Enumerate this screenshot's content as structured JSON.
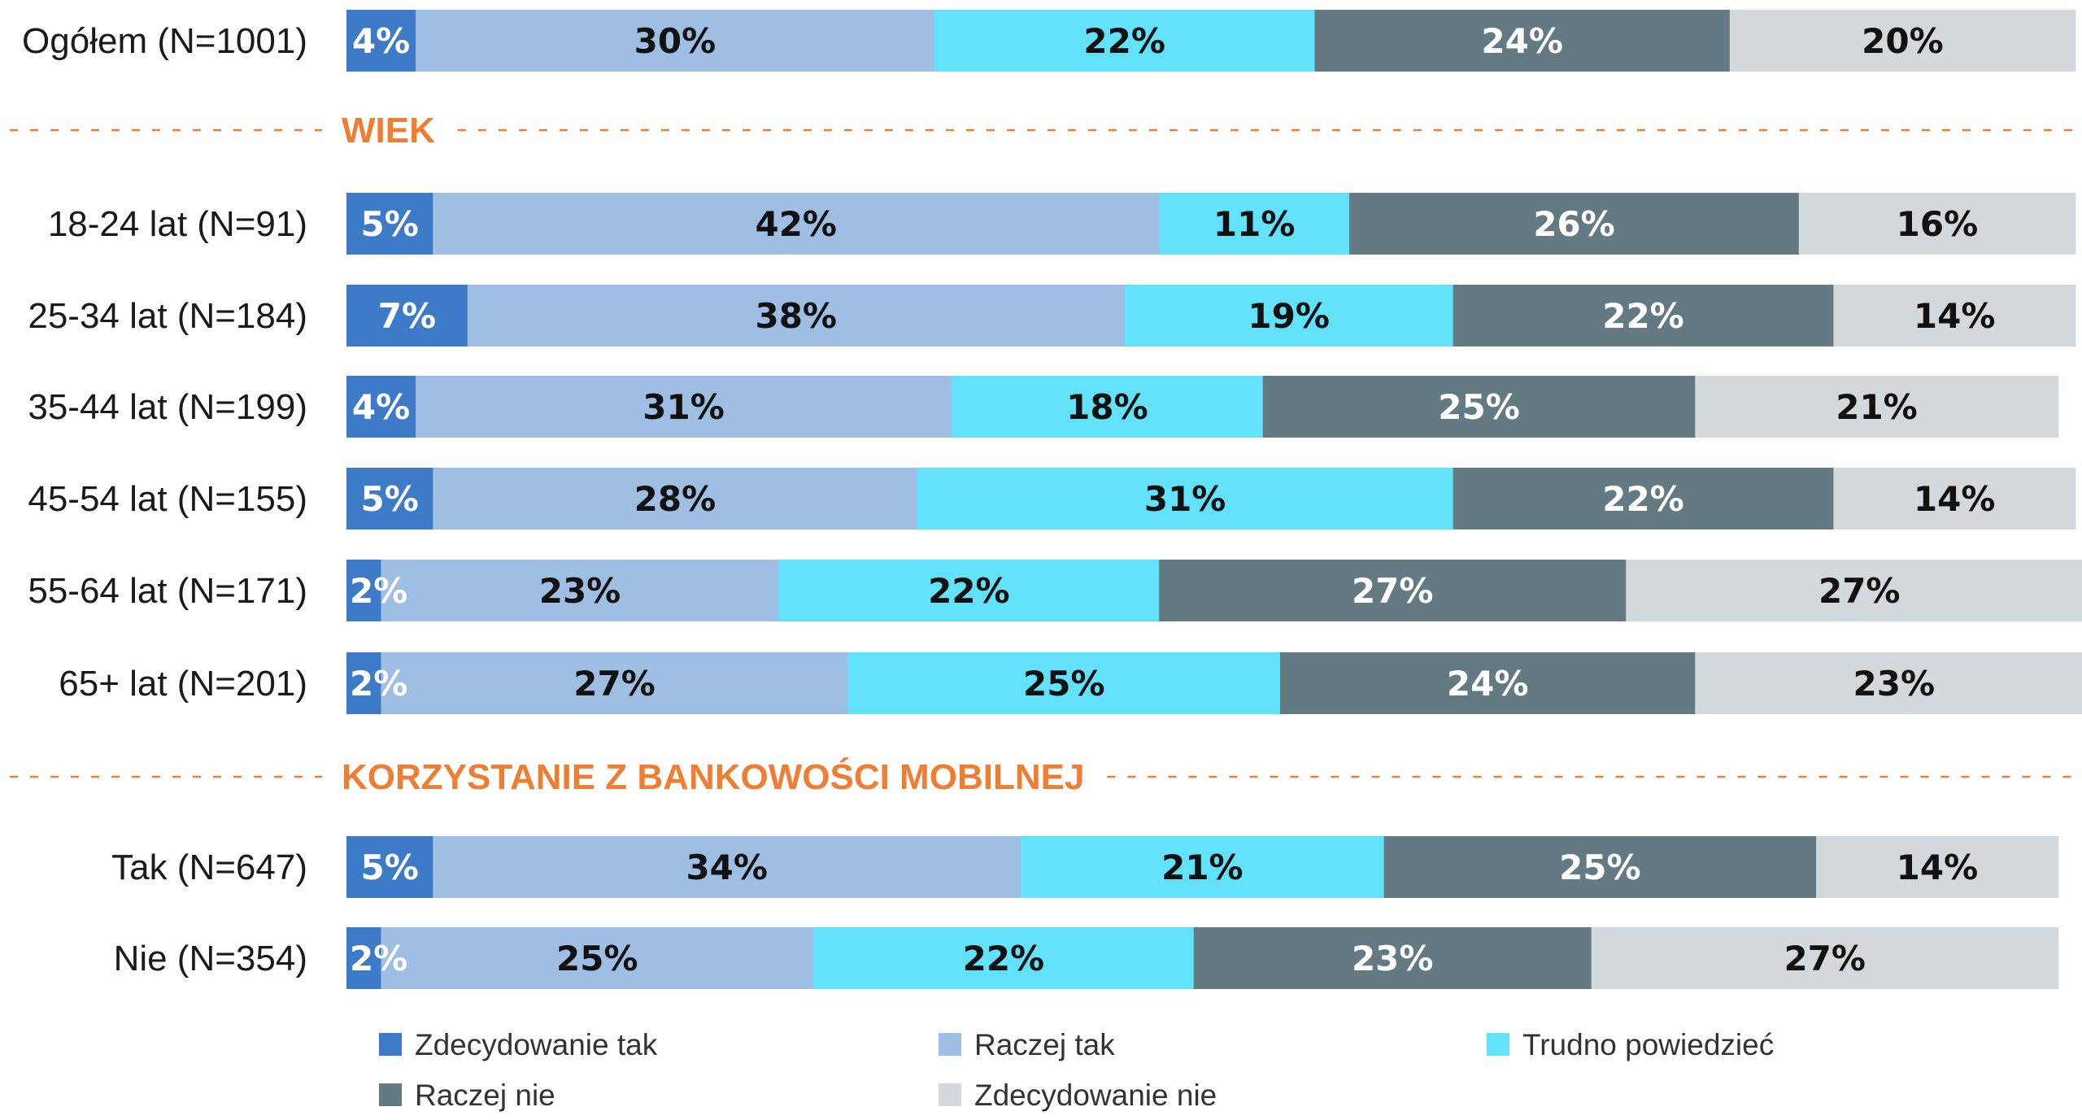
{
  "chart_data": {
    "type": "bar",
    "orientation": "horizontal",
    "stacked": true,
    "normalized": true,
    "xlim": [
      0,
      100
    ],
    "series": [
      {
        "name": "Zdecydowanie tak",
        "color": "#3d7bc8",
        "label_color": "#ffffff"
      },
      {
        "name": "Raczej tak",
        "color": "#9fbee3",
        "label_color": "#111111"
      },
      {
        "name": "Trudno powiedzieć",
        "color": "#62e1fa",
        "label_color": "#111111"
      },
      {
        "name": "Raczej nie",
        "color": "#647a82",
        "label_color": "#ffffff"
      },
      {
        "name": "Zdecydowanie nie",
        "color": "#d3d8dc",
        "label_color": "#111111"
      }
    ],
    "rows": [
      {
        "label": "Ogółem (N=1001)",
        "values": [
          4,
          30,
          22,
          24,
          20
        ]
      },
      {
        "section": "WIEK"
      },
      {
        "label": "18-24 lat (N=91)",
        "values": [
          5,
          42,
          11,
          26,
          16
        ]
      },
      {
        "label": "25-34 lat (N=184)",
        "values": [
          7,
          38,
          19,
          22,
          14
        ]
      },
      {
        "label": "35-44 lat (N=199)",
        "values": [
          4,
          31,
          18,
          25,
          21
        ]
      },
      {
        "label": "45-54 lat (N=155)",
        "values": [
          5,
          28,
          31,
          22,
          14
        ]
      },
      {
        "label": "55-64 lat (N=171)",
        "values": [
          2,
          23,
          22,
          27,
          27
        ]
      },
      {
        "label": "65+ lat (N=201)",
        "values": [
          2,
          27,
          25,
          24,
          23
        ]
      },
      {
        "section": "KORZYSTANIE Z BANKOWOŚCI MOBILNEJ"
      },
      {
        "label": "Tak (N=647)",
        "values": [
          5,
          34,
          21,
          25,
          14
        ]
      },
      {
        "label": "Nie (N=354)",
        "values": [
          2,
          25,
          22,
          23,
          27
        ]
      }
    ],
    "legend": {
      "position": "bottom"
    }
  }
}
